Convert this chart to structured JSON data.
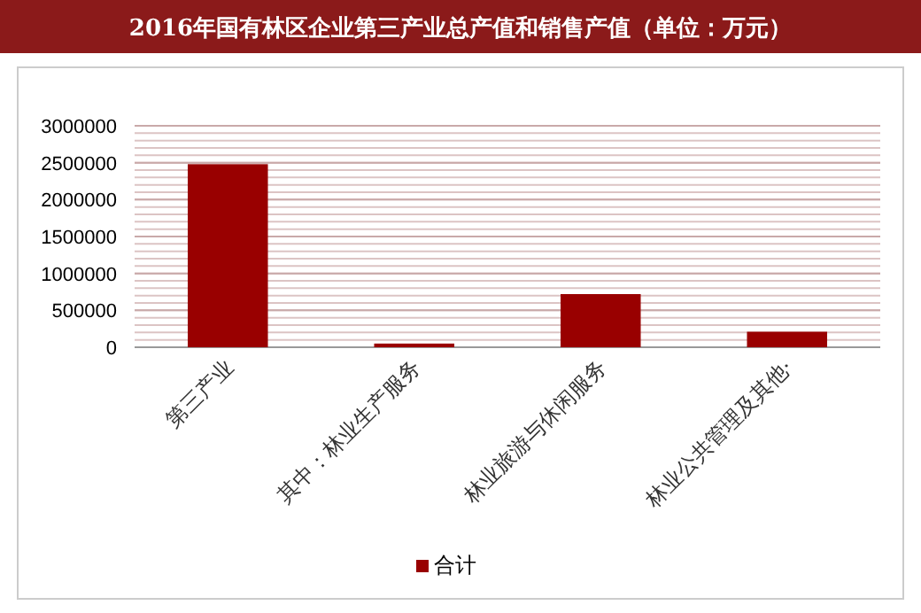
{
  "chart_data": {
    "type": "bar",
    "title": "2016年国有林区企业第三产业总产值和销售产值（单位：万元）",
    "categories": [
      "第三产业",
      "其中：林业生产服务",
      "林业旅游与休闲服务",
      "林业公共管理及其他·"
    ],
    "series": [
      {
        "name": "合计",
        "color": "#990000",
        "values": [
          2480000,
          50000,
          720000,
          210000
        ]
      }
    ],
    "ylim": [
      0,
      3000000
    ],
    "yticks": [
      0,
      500000,
      1000000,
      1500000,
      2000000,
      2500000,
      3000000
    ],
    "grid": "y",
    "legend": "bottom"
  }
}
